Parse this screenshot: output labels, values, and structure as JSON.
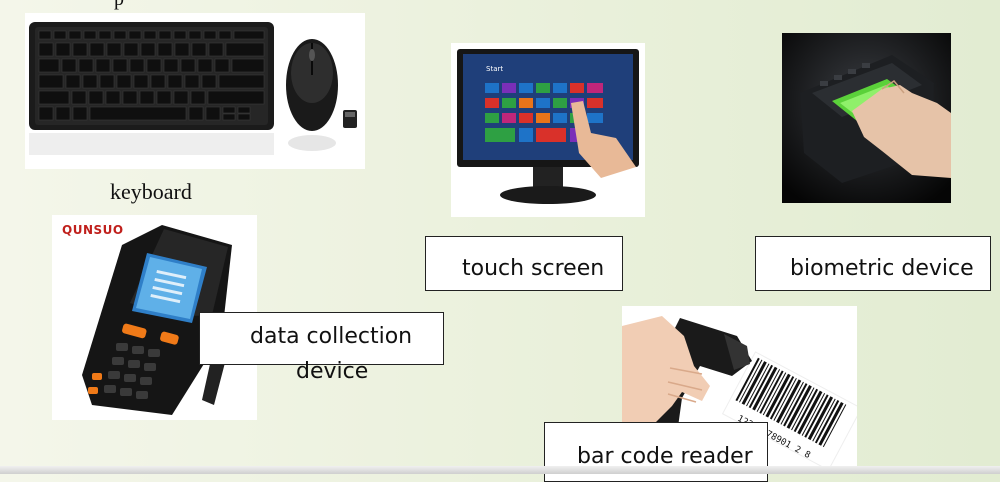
{
  "slide": {
    "cut_top_text": "p",
    "keyboard_caption": "keyboard",
    "brand_logo": "QUNSUO",
    "screen_start": "Start",
    "barcode_digits": "12345678901 2 8",
    "labels": {
      "touch_screen": "touch screen",
      "biometric": "biometric device",
      "data_collection_line1": "data collection",
      "data_collection_line2": "device",
      "bar_code": "bar code reader"
    },
    "colors": {
      "accent": "#e2ecd2",
      "tile_blue": "#1e73c8",
      "tile_red": "#d9312a",
      "fingerprint_green": "#5bd13a",
      "scanner_orange": "#f07a18"
    }
  }
}
